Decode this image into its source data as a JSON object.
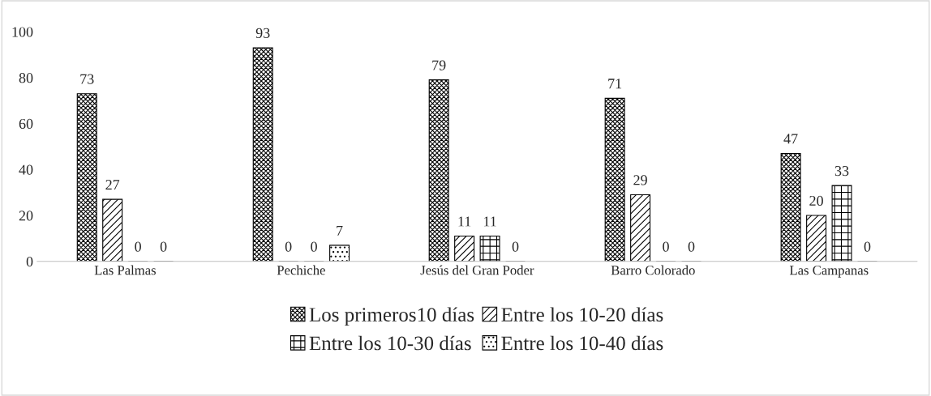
{
  "chart_data": {
    "type": "bar",
    "categories": [
      "Las Palmas",
      "Pechiche",
      "Jesús del Gran Poder",
      "Barro Colorado",
      "Las Campanas"
    ],
    "series": [
      {
        "name": "Los primeros10 días",
        "color": "#000000",
        "values": [
          73,
          93,
          79,
          71,
          47
        ]
      },
      {
        "name": "Entre los 10-20 días",
        "color": "#000000",
        "values": [
          27,
          0,
          11,
          29,
          20
        ]
      },
      {
        "name": "Entre los 10-30 días",
        "color": "#000000",
        "values": [
          0,
          0,
          11,
          0,
          33
        ]
      },
      {
        "name": "Entre los 10-40 días",
        "color": "#000000",
        "values": [
          0,
          7,
          0,
          0,
          0
        ]
      }
    ],
    "ylim": [
      0,
      100
    ],
    "yticks": [
      0,
      20,
      40,
      60,
      80,
      100
    ],
    "data_labels": true,
    "grid": false,
    "legend": "bottom"
  }
}
